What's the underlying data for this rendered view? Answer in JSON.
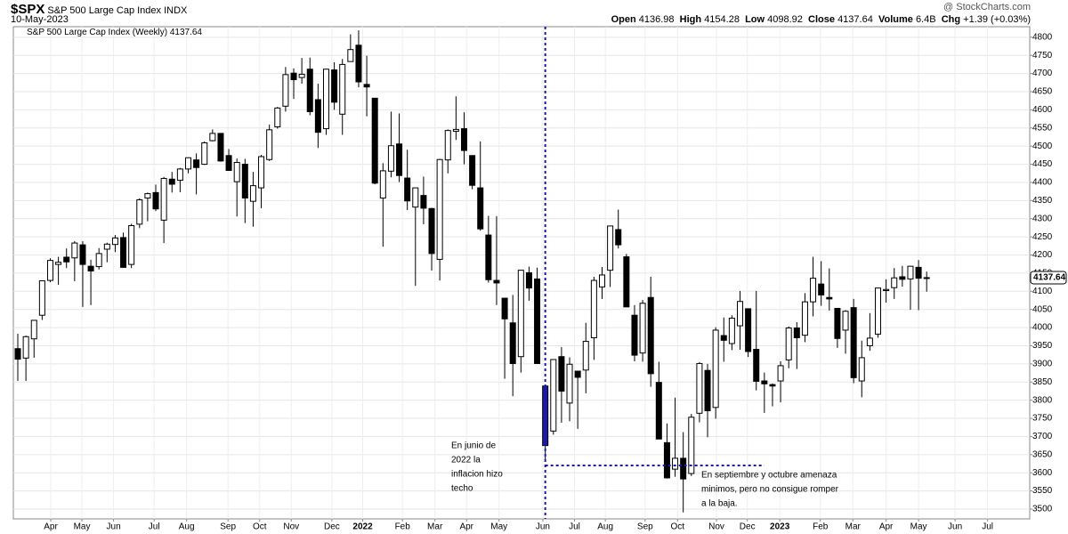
{
  "chart_data": {
    "type": "candlestick",
    "title": "$SPX",
    "subtitle": "S&P 500 Large Cap Index",
    "exchange": "INDX",
    "date": "10-May-2023",
    "source": "@ StockCharts.com",
    "stats_labels": [
      "Open",
      "High",
      "Low",
      "Close",
      "Volume",
      "Chg"
    ],
    "volume": "6.4B",
    "change": "+1.39 (+0.03%)",
    "legend": "S&P 500 Large Cap Index (Weekly)",
    "open": [
      3942,
      3916,
      3969,
      4034,
      4130,
      4174,
      4194,
      4192,
      4228,
      4169,
      4168,
      4216,
      4229,
      4248,
      4174,
      4285,
      4357,
      4372,
      4296,
      4409,
      4406,
      4437,
      4462,
      4450,
      4515,
      4535,
      4474,
      4402,
      4450,
      4348,
      4385,
      4463,
      4553,
      4610,
      4701,
      4689,
      4712,
      4628,
      4548,
      4710,
      4588,
      4733,
      4778,
      4670,
      4632,
      4357,
      4431,
      4506,
      4412,
      4332,
      4364,
      4328,
      4188,
      4462,
      4541,
      4548,
      4474,
      4385,
      4255,
      4130,
      4081,
      4013,
      3920,
      4151,
      4134,
      3839,
      3715,
      3920,
      3792,
      3880,
      3883,
      3972,
      4112,
      4158,
      4270,
      4195,
      4034,
      3930,
      4083,
      3849,
      3683,
      3610,
      3640,
      3598,
      3764,
      3882,
      3780,
      3978,
      3956,
      4005,
      4052,
      3940,
      3853,
      3843,
      3853,
      3911,
      3999,
      3979,
      4071,
      4120,
      4083,
      4053,
      3993,
      4055,
      3853,
      3950,
      3982,
      4102,
      4110,
      4140,
      4134,
      4166,
      4136.98
    ],
    "high": [
      3983,
      3978,
      4020,
      4130,
      4191,
      4195,
      4218,
      4238,
      4238,
      4187,
      4219,
      4234,
      4255,
      4262,
      4286,
      4356,
      4372,
      4394,
      4415,
      4429,
      4440,
      4469,
      4480,
      4513,
      4546,
      4536,
      4492,
      4466,
      4465,
      4429,
      4476,
      4559,
      4608,
      4718,
      4714,
      4743,
      4744,
      4672,
      4713,
      4731,
      4740,
      4808,
      4819,
      4749,
      4632,
      4453,
      4595,
      4590,
      4490,
      4385,
      4416,
      4330,
      4465,
      4546,
      4637,
      4593,
      4471,
      4513,
      4308,
      4307,
      4082,
      4090,
      4159,
      4168,
      4165,
      3839,
      3913,
      3946,
      3918,
      3880,
      4013,
      4140,
      4167,
      4280,
      4325,
      4203,
      4062,
      4076,
      4140,
      3906,
      3736,
      3807,
      3712,
      3762,
      3905,
      3900,
      4001,
      4028,
      4034,
      4101,
      4052,
      4101,
      3876,
      3846,
      3907,
      4003,
      4015,
      4095,
      4195,
      4183,
      4163,
      4053,
      4048,
      4079,
      3964,
      4040,
      4110,
      4133,
      4164,
      4170,
      4170,
      4186,
      4154.28
    ],
    "low": [
      3853,
      3853,
      3917,
      4021,
      4125,
      4118,
      4164,
      4128,
      4057,
      4062,
      4160,
      4180,
      4208,
      4165,
      4164,
      4274,
      4293,
      4321,
      4233,
      4372,
      4373,
      4425,
      4367,
      4448,
      4513,
      4457,
      4433,
      4306,
      4288,
      4278,
      4329,
      4459,
      4548,
      4595,
      4630,
      4672,
      4585,
      4495,
      4531,
      4600,
      4531,
      4733,
      4662,
      4582,
      4395,
      4223,
      4414,
      4401,
      4324,
      4115,
      4285,
      4157,
      4130,
      4425,
      4517,
      4450,
      4381,
      4267,
      4124,
      4062,
      3859,
      3811,
      3876,
      4074,
      3900,
      3637,
      3705,
      3738,
      3742,
      3721,
      3819,
      3911,
      4079,
      4112,
      4218,
      4057,
      3907,
      3906,
      3837,
      3693,
      3584,
      3589,
      3491,
      3591,
      3739,
      3698,
      3749,
      3906,
      3938,
      3939,
      3919,
      3827,
      3765,
      3783,
      3794,
      3888,
      3886,
      3960,
      4031,
      4060,
      4047,
      3944,
      3928,
      3847,
      3808,
      3936,
      3972,
      4069,
      4079,
      4113,
      4049,
      4048,
      4098.92
    ],
    "close": [
      3913,
      3975,
      4020,
      4129,
      4185,
      4180,
      4181,
      4233,
      4174,
      4156,
      4204,
      4230,
      4247,
      4166,
      4281,
      4352,
      4369,
      4327,
      4411,
      4395,
      4437,
      4468,
      4441,
      4509,
      4535,
      4459,
      4433,
      4455,
      4357,
      4391,
      4471,
      4545,
      4605,
      4697,
      4683,
      4698,
      4595,
      4538,
      4712,
      4621,
      4725,
      4766,
      4677,
      4663,
      4398,
      4432,
      4501,
      4419,
      4349,
      4385,
      4329,
      4204,
      4463,
      4543,
      4546,
      4488,
      4392,
      4272,
      4132,
      4123,
      4024,
      3901,
      4158,
      4109,
      3901,
      3675,
      3912,
      3825,
      3899,
      3863,
      3962,
      4130,
      4145,
      4280,
      4228,
      4057,
      3924,
      4067,
      3873,
      3693,
      3586,
      3640,
      3583,
      3753,
      3901,
      3771,
      3993,
      3965,
      4026,
      4072,
      3934,
      3852,
      3845,
      3839,
      3895,
      3999,
      3972,
      4071,
      4136,
      4090,
      4079,
      3970,
      4045,
      3862,
      3917,
      3971,
      4109,
      4105,
      4137,
      4133,
      4169,
      4136,
      4137.64
    ],
    "xlim": [
      -0.55,
      124.7
    ],
    "ylim": [
      3473,
      4829
    ],
    "xticks": [
      {
        "value": 4.06,
        "label": "Apr"
      },
      {
        "value": 7.9,
        "label": "May"
      },
      {
        "value": 11.8,
        "label": "Jun"
      },
      {
        "value": 16.8,
        "label": "Jul"
      },
      {
        "value": 20.8,
        "label": "Aug"
      },
      {
        "value": 25.9,
        "label": "Sep"
      },
      {
        "value": 29.8,
        "label": "Oct"
      },
      {
        "value": 33.7,
        "label": "Nov"
      },
      {
        "value": 38.7,
        "label": "Dec"
      },
      {
        "value": 42.5,
        "label": "2022"
      },
      {
        "value": 47.4,
        "label": "Feb"
      },
      {
        "value": 51.4,
        "label": "Mar"
      },
      {
        "value": 55.3,
        "label": "Apr"
      },
      {
        "value": 59.3,
        "label": "May"
      },
      {
        "value": 64.7,
        "label": "Jun"
      },
      {
        "value": 68.6,
        "label": "Jul"
      },
      {
        "value": 72.4,
        "label": "Aug"
      },
      {
        "value": 77.3,
        "label": "Sep"
      },
      {
        "value": 81.3,
        "label": "Oct"
      },
      {
        "value": 86.1,
        "label": "Nov"
      },
      {
        "value": 89.9,
        "label": "Dec"
      },
      {
        "value": 93.9,
        "label": "2023"
      },
      {
        "value": 98.9,
        "label": "Feb"
      },
      {
        "value": 102.9,
        "label": "Mar"
      },
      {
        "value": 107,
        "label": "Apr"
      },
      {
        "value": 111,
        "label": "May"
      },
      {
        "value": 115.5,
        "label": "Jun"
      },
      {
        "value": 119.5,
        "label": "Jul"
      }
    ],
    "yticks": [
      3500,
      3550,
      3600,
      3650,
      3700,
      3750,
      3800,
      3850,
      3900,
      3950,
      4000,
      4050,
      4100,
      4150,
      4200,
      4250,
      4300,
      4350,
      4400,
      4450,
      4500,
      4550,
      4600,
      4650,
      4700,
      4750,
      4800
    ],
    "grid": true,
    "up_color": "#ffffff",
    "down_color": "#000000",
    "annotation_color": "#1a1aa6",
    "vline": 65,
    "hline": 3620,
    "hline_end": 92,
    "annotations": [
      [
        "En junio de",
        "2022 la",
        "inflacion hizo",
        "techo"
      ],
      [
        "En septiembre y octubre amenaza",
        "minimos, pero no consigue romper",
        "a la baja."
      ]
    ]
  }
}
